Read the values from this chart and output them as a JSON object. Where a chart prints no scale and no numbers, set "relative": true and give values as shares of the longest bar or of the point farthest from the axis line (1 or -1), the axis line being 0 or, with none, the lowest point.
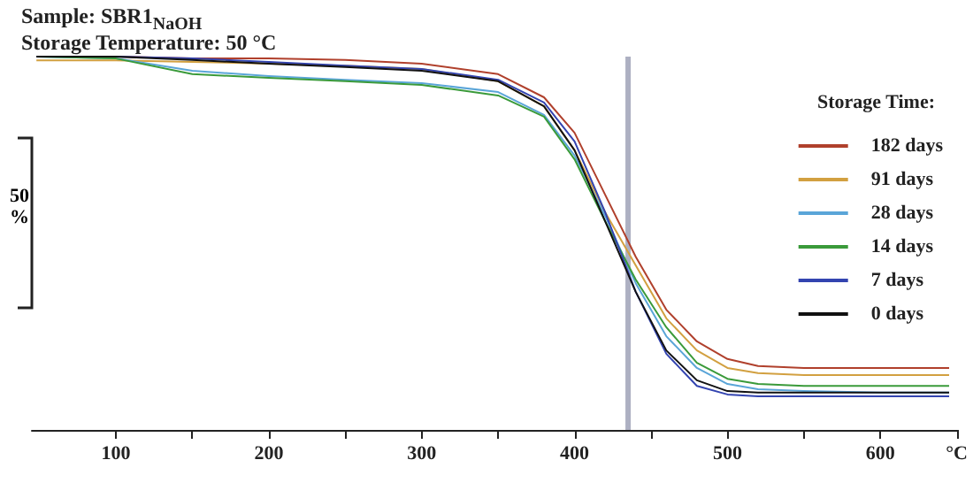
{
  "chart_data": {
    "type": "line",
    "title": "Sample: SBR1$_{NaOH}$",
    "subtitle": "Storage Temperature: 50 °C",
    "legend_title": "Storage Time:",
    "annotations": [
      "50 %"
    ],
    "relative": true,
    "legend": "right",
    "grid": false,
    "marker": "none",
    "line_style": "solid",
    "tick_labels": "x",
    "x": [
      48,
      100,
      150,
      200,
      250,
      300,
      350,
      380,
      400,
      420,
      440,
      460,
      480,
      500,
      520,
      550,
      600,
      645
    ],
    "xlim": [
      45,
      650
    ],
    "xticks": [
      100,
      {
        "value": 150,
        "label": null
      },
      200,
      {
        "value": 250,
        "label": null
      },
      300,
      {
        "value": 350,
        "label": null
      },
      400,
      {
        "value": 450,
        "label": null
      },
      500,
      {
        "value": 550,
        "label": null
      },
      600,
      {
        "value": 650,
        "label": "°C"
      }
    ],
    "ref_lines": [
      {
        "axis": "x",
        "value": 435,
        "color": "#8a8fa8"
      }
    ],
    "series": [
      {
        "name": "182 days",
        "color": "#b0402c",
        "values": [
          1.0,
          1.0,
          0.995,
          0.995,
          0.991,
          0.981,
          0.953,
          0.891,
          0.796,
          0.63,
          0.464,
          0.322,
          0.237,
          0.19,
          0.171,
          0.166,
          0.166,
          0.166
        ]
      },
      {
        "name": "91 days",
        "color": "#d2a040",
        "values": [
          0.99,
          0.99,
          0.986,
          0.981,
          0.976,
          0.967,
          0.934,
          0.867,
          0.749,
          0.583,
          0.441,
          0.299,
          0.213,
          0.166,
          0.152,
          0.147,
          0.147,
          0.147
        ]
      },
      {
        "name": "28 days",
        "color": "#5aa5d8",
        "values": [
          1.0,
          0.995,
          0.962,
          0.948,
          0.938,
          0.929,
          0.905,
          0.844,
          0.735,
          0.573,
          0.393,
          0.251,
          0.166,
          0.123,
          0.109,
          0.104,
          0.1,
          0.1
        ]
      },
      {
        "name": "14 days",
        "color": "#3a9a3a",
        "values": [
          1.0,
          0.995,
          0.953,
          0.943,
          0.934,
          0.924,
          0.896,
          0.839,
          0.725,
          0.559,
          0.403,
          0.275,
          0.18,
          0.137,
          0.123,
          0.118,
          0.118,
          0.118
        ]
      },
      {
        "name": "7 days",
        "color": "#3344b0",
        "values": [
          1.0,
          1.0,
          0.995,
          0.986,
          0.976,
          0.967,
          0.938,
          0.877,
          0.773,
          0.583,
          0.37,
          0.204,
          0.118,
          0.095,
          0.09,
          0.09,
          0.09,
          0.09
        ]
      },
      {
        "name": "0 days",
        "color": "#111111",
        "values": [
          1.0,
          1.0,
          0.991,
          0.981,
          0.972,
          0.962,
          0.934,
          0.867,
          0.749,
          0.559,
          0.37,
          0.213,
          0.133,
          0.104,
          0.1,
          0.1,
          0.1,
          0.1
        ]
      }
    ]
  }
}
